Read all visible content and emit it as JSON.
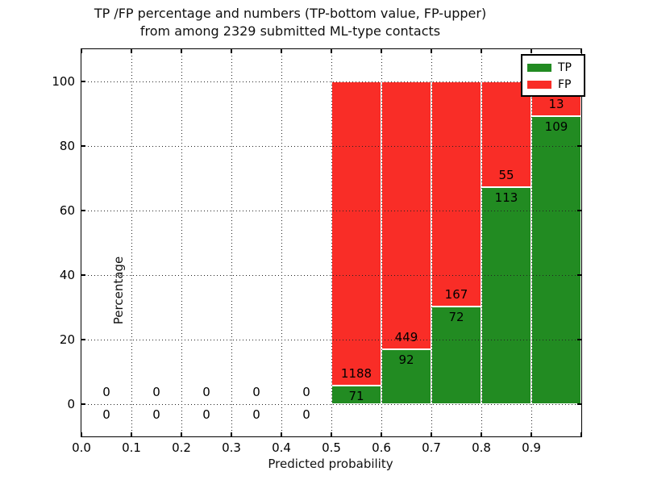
{
  "figure": {
    "title_line1": "TP /FP percentage and numbers (TP-bottom value, FP-upper)",
    "title_line2": "from among 2329 submitted ML-type contacts"
  },
  "chart_data": {
    "type": "bar",
    "stacked": true,
    "title": "TP /FP percentage and numbers (TP-bottom value, FP-upper)\nfrom among 2329 submitted ML-type contacts",
    "xlabel": "Predicted probability",
    "ylabel": "Percentage",
    "xlim": [
      0.0,
      1.0
    ],
    "ylim": [
      -10,
      110
    ],
    "x_tick_values": [
      0.0,
      0.1,
      0.2,
      0.3,
      0.4,
      0.5,
      0.6,
      0.7,
      0.8,
      0.9,
      1.0
    ],
    "x_tick_labels": [
      "0.0",
      "0.1",
      "0.2",
      "0.3",
      "0.4",
      "0.5",
      "0.6",
      "0.7",
      "0.8",
      "0.9",
      ""
    ],
    "y_tick_values": [
      0,
      20,
      40,
      60,
      80,
      100
    ],
    "y_tick_labels": [
      "0",
      "20",
      "40",
      "60",
      "80",
      "100"
    ],
    "grid": "dotted",
    "legend_position": "upper right",
    "total_contacts": 2329,
    "bin_width": 0.1,
    "categories": [
      "0.0-0.1",
      "0.1-0.2",
      "0.2-0.3",
      "0.3-0.4",
      "0.4-0.5",
      "0.5-0.6",
      "0.6-0.7",
      "0.7-0.8",
      "0.8-0.9",
      "0.9-1.0"
    ],
    "series": [
      {
        "name": "TP",
        "color": "#228b22",
        "counts": [
          0,
          0,
          0,
          0,
          0,
          71,
          92,
          72,
          113,
          109
        ],
        "pct": [
          0,
          0,
          0,
          0,
          0,
          5.64,
          17.01,
          30.13,
          67.26,
          89.34
        ]
      },
      {
        "name": "FP",
        "color": "#f92d27",
        "counts": [
          0,
          0,
          0,
          0,
          0,
          1188,
          449,
          167,
          55,
          13
        ],
        "pct": [
          0,
          0,
          0,
          0,
          0,
          94.36,
          82.99,
          69.87,
          32.74,
          10.66
        ]
      }
    ]
  }
}
